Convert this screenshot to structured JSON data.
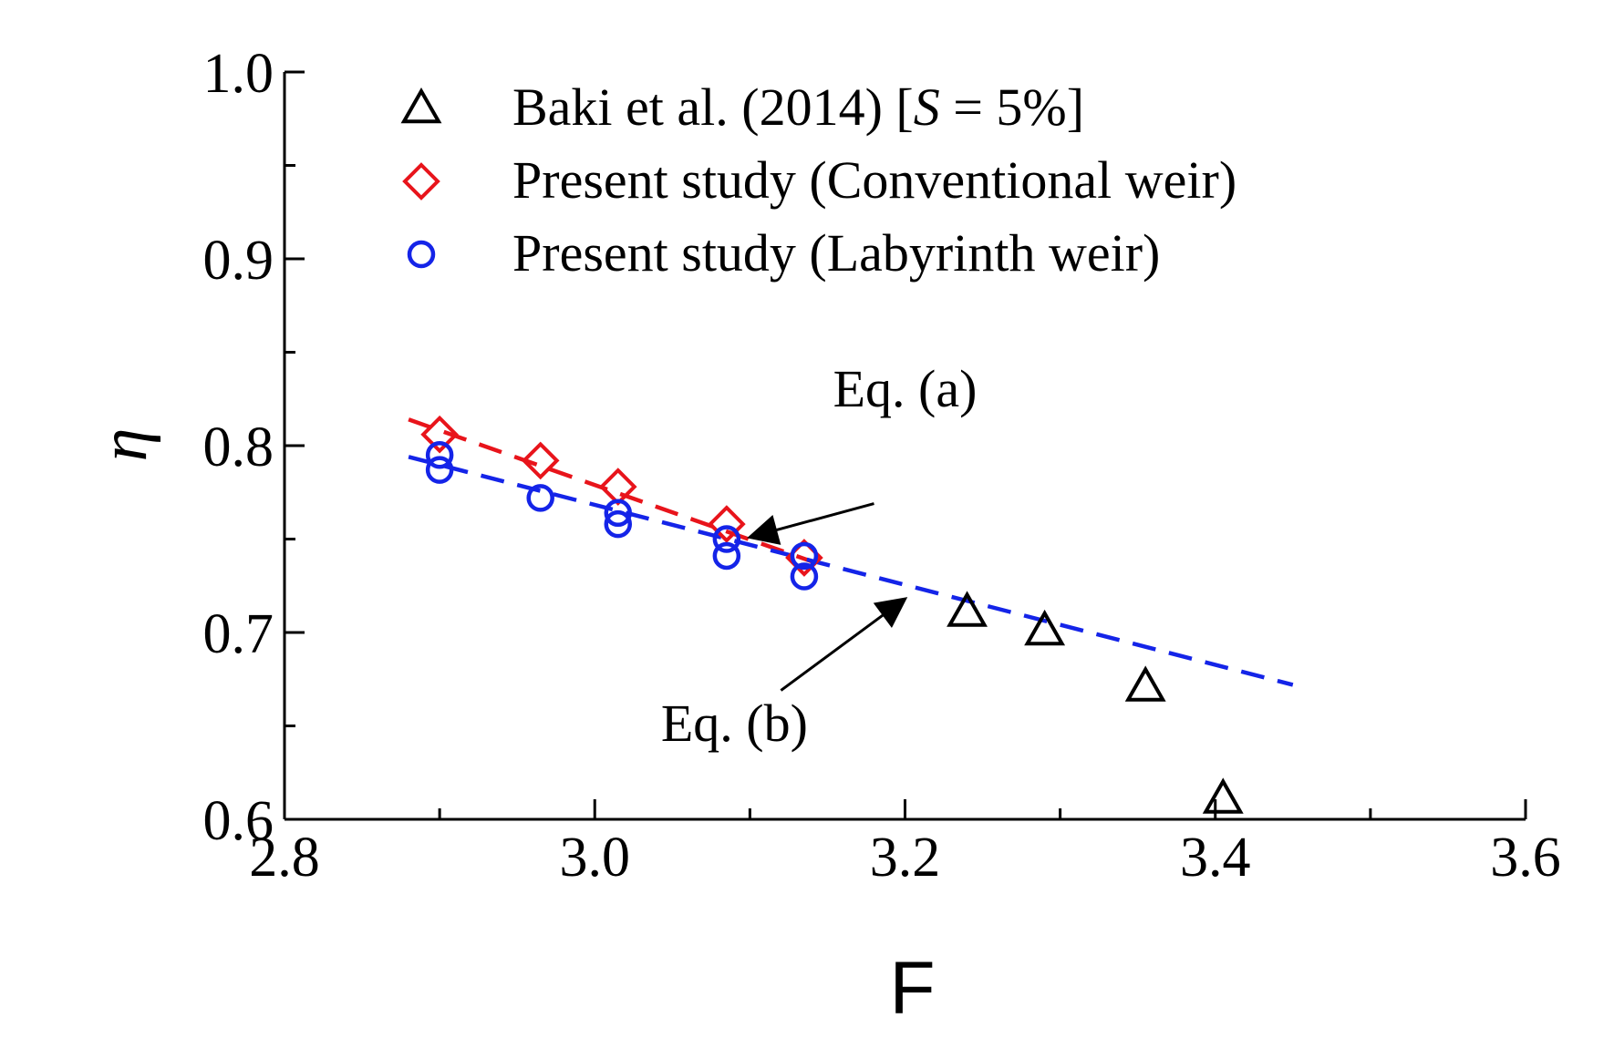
{
  "chart_data": {
    "type": "scatter",
    "xlabel": "F",
    "ylabel": "η",
    "xlim": [
      2.8,
      3.6
    ],
    "ylim": [
      0.6,
      1.0
    ],
    "xticks": [
      "2.8",
      "3.0",
      "3.2",
      "3.4",
      "3.6"
    ],
    "yticks": [
      "0.6",
      "0.7",
      "0.8",
      "0.9",
      "1.0"
    ],
    "x_minor_step": 0.1,
    "y_minor_step": 0.05,
    "grid": false,
    "legend_position": "top-left",
    "series": [
      {
        "name": "Baki et al. (2014) [S = 5%]",
        "legend_parts": [
          "Baki et al. (2014) [",
          "S",
          " = 5%]"
        ],
        "marker": "triangle",
        "color": "#000000",
        "x": [
          3.24,
          3.29,
          3.355,
          3.405
        ],
        "y": [
          0.711,
          0.701,
          0.671,
          0.611
        ]
      },
      {
        "name": "Present study (Conventional weir)",
        "marker": "diamond",
        "color": "#e8141b",
        "x": [
          2.9,
          2.965,
          3.015,
          3.085,
          3.135
        ],
        "y": [
          0.806,
          0.792,
          0.778,
          0.758,
          0.74
        ]
      },
      {
        "name": "Present study (Labyrinth weir)",
        "marker": "circle",
        "color": "#1424e8",
        "x": [
          2.9,
          2.9,
          2.965,
          3.015,
          3.015,
          3.085,
          3.085,
          3.135,
          3.135
        ],
        "y": [
          0.795,
          0.787,
          0.772,
          0.764,
          0.758,
          0.75,
          0.741,
          0.741,
          0.73
        ]
      }
    ],
    "fit_lines": [
      {
        "name": "Eq. (a)",
        "color": "#e8141b",
        "x": [
          2.88,
          3.14
        ],
        "y": [
          0.814,
          0.738
        ]
      },
      {
        "name": "Eq. (b)",
        "color": "#1424e8",
        "x": [
          2.88,
          3.45
        ],
        "y": [
          0.794,
          0.672
        ]
      }
    ],
    "annotations": [
      {
        "label": "Eq. (a)",
        "text_at": [
          3.2,
          0.821
        ],
        "arrow_from": [
          3.18,
          0.769
        ],
        "arrow_to": [
          3.1,
          0.751
        ]
      },
      {
        "label": "Eq. (b)",
        "text_at": [
          3.09,
          0.642
        ],
        "arrow_from": [
          3.12,
          0.669
        ],
        "arrow_to": [
          3.2,
          0.718
        ]
      }
    ]
  }
}
